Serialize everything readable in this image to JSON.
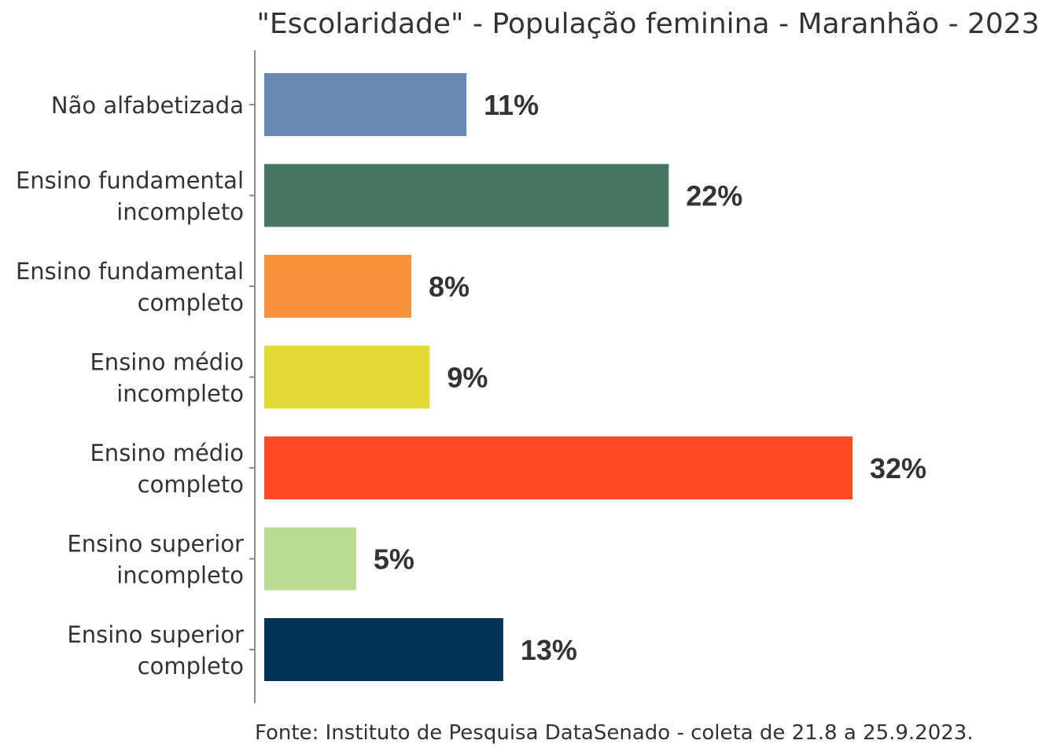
{
  "chart_data": {
    "type": "bar",
    "orientation": "horizontal",
    "title": "\"Escolaridade\" - População feminina - Maranhão - 2023",
    "categories": [
      "Não alfabetizada",
      "Ensino fundamental incompleto",
      "Ensino fundamental completo",
      "Ensino médio incompleto",
      "Ensino médio completo",
      "Ensino superior incompleto",
      "Ensino superior completo"
    ],
    "category_lines": [
      [
        "Não alfabetizada"
      ],
      [
        "Ensino fundamental",
        "incompleto"
      ],
      [
        "Ensino fundamental",
        "completo"
      ],
      [
        "Ensino médio",
        "incompleto"
      ],
      [
        "Ensino médio",
        "completo"
      ],
      [
        "Ensino superior",
        "incompleto"
      ],
      [
        "Ensino superior",
        "completo"
      ]
    ],
    "values": [
      11,
      22,
      8,
      9,
      32,
      5,
      13
    ],
    "value_labels": [
      "11%",
      "22%",
      "8%",
      "9%",
      "32%",
      "5%",
      "13%"
    ],
    "colors": [
      "#6789B1",
      "#467564",
      "#FA933D",
      "#E3D937",
      "#FF4A23",
      "#BADC91",
      "#023256"
    ],
    "xlabel": "",
    "ylabel": "",
    "xlim": [
      0,
      32
    ],
    "grid": false,
    "legend": "none",
    "source": "Fonte: Instituto de Pesquisa DataSenado - coleta de 21.8 a 25.9.2023."
  }
}
